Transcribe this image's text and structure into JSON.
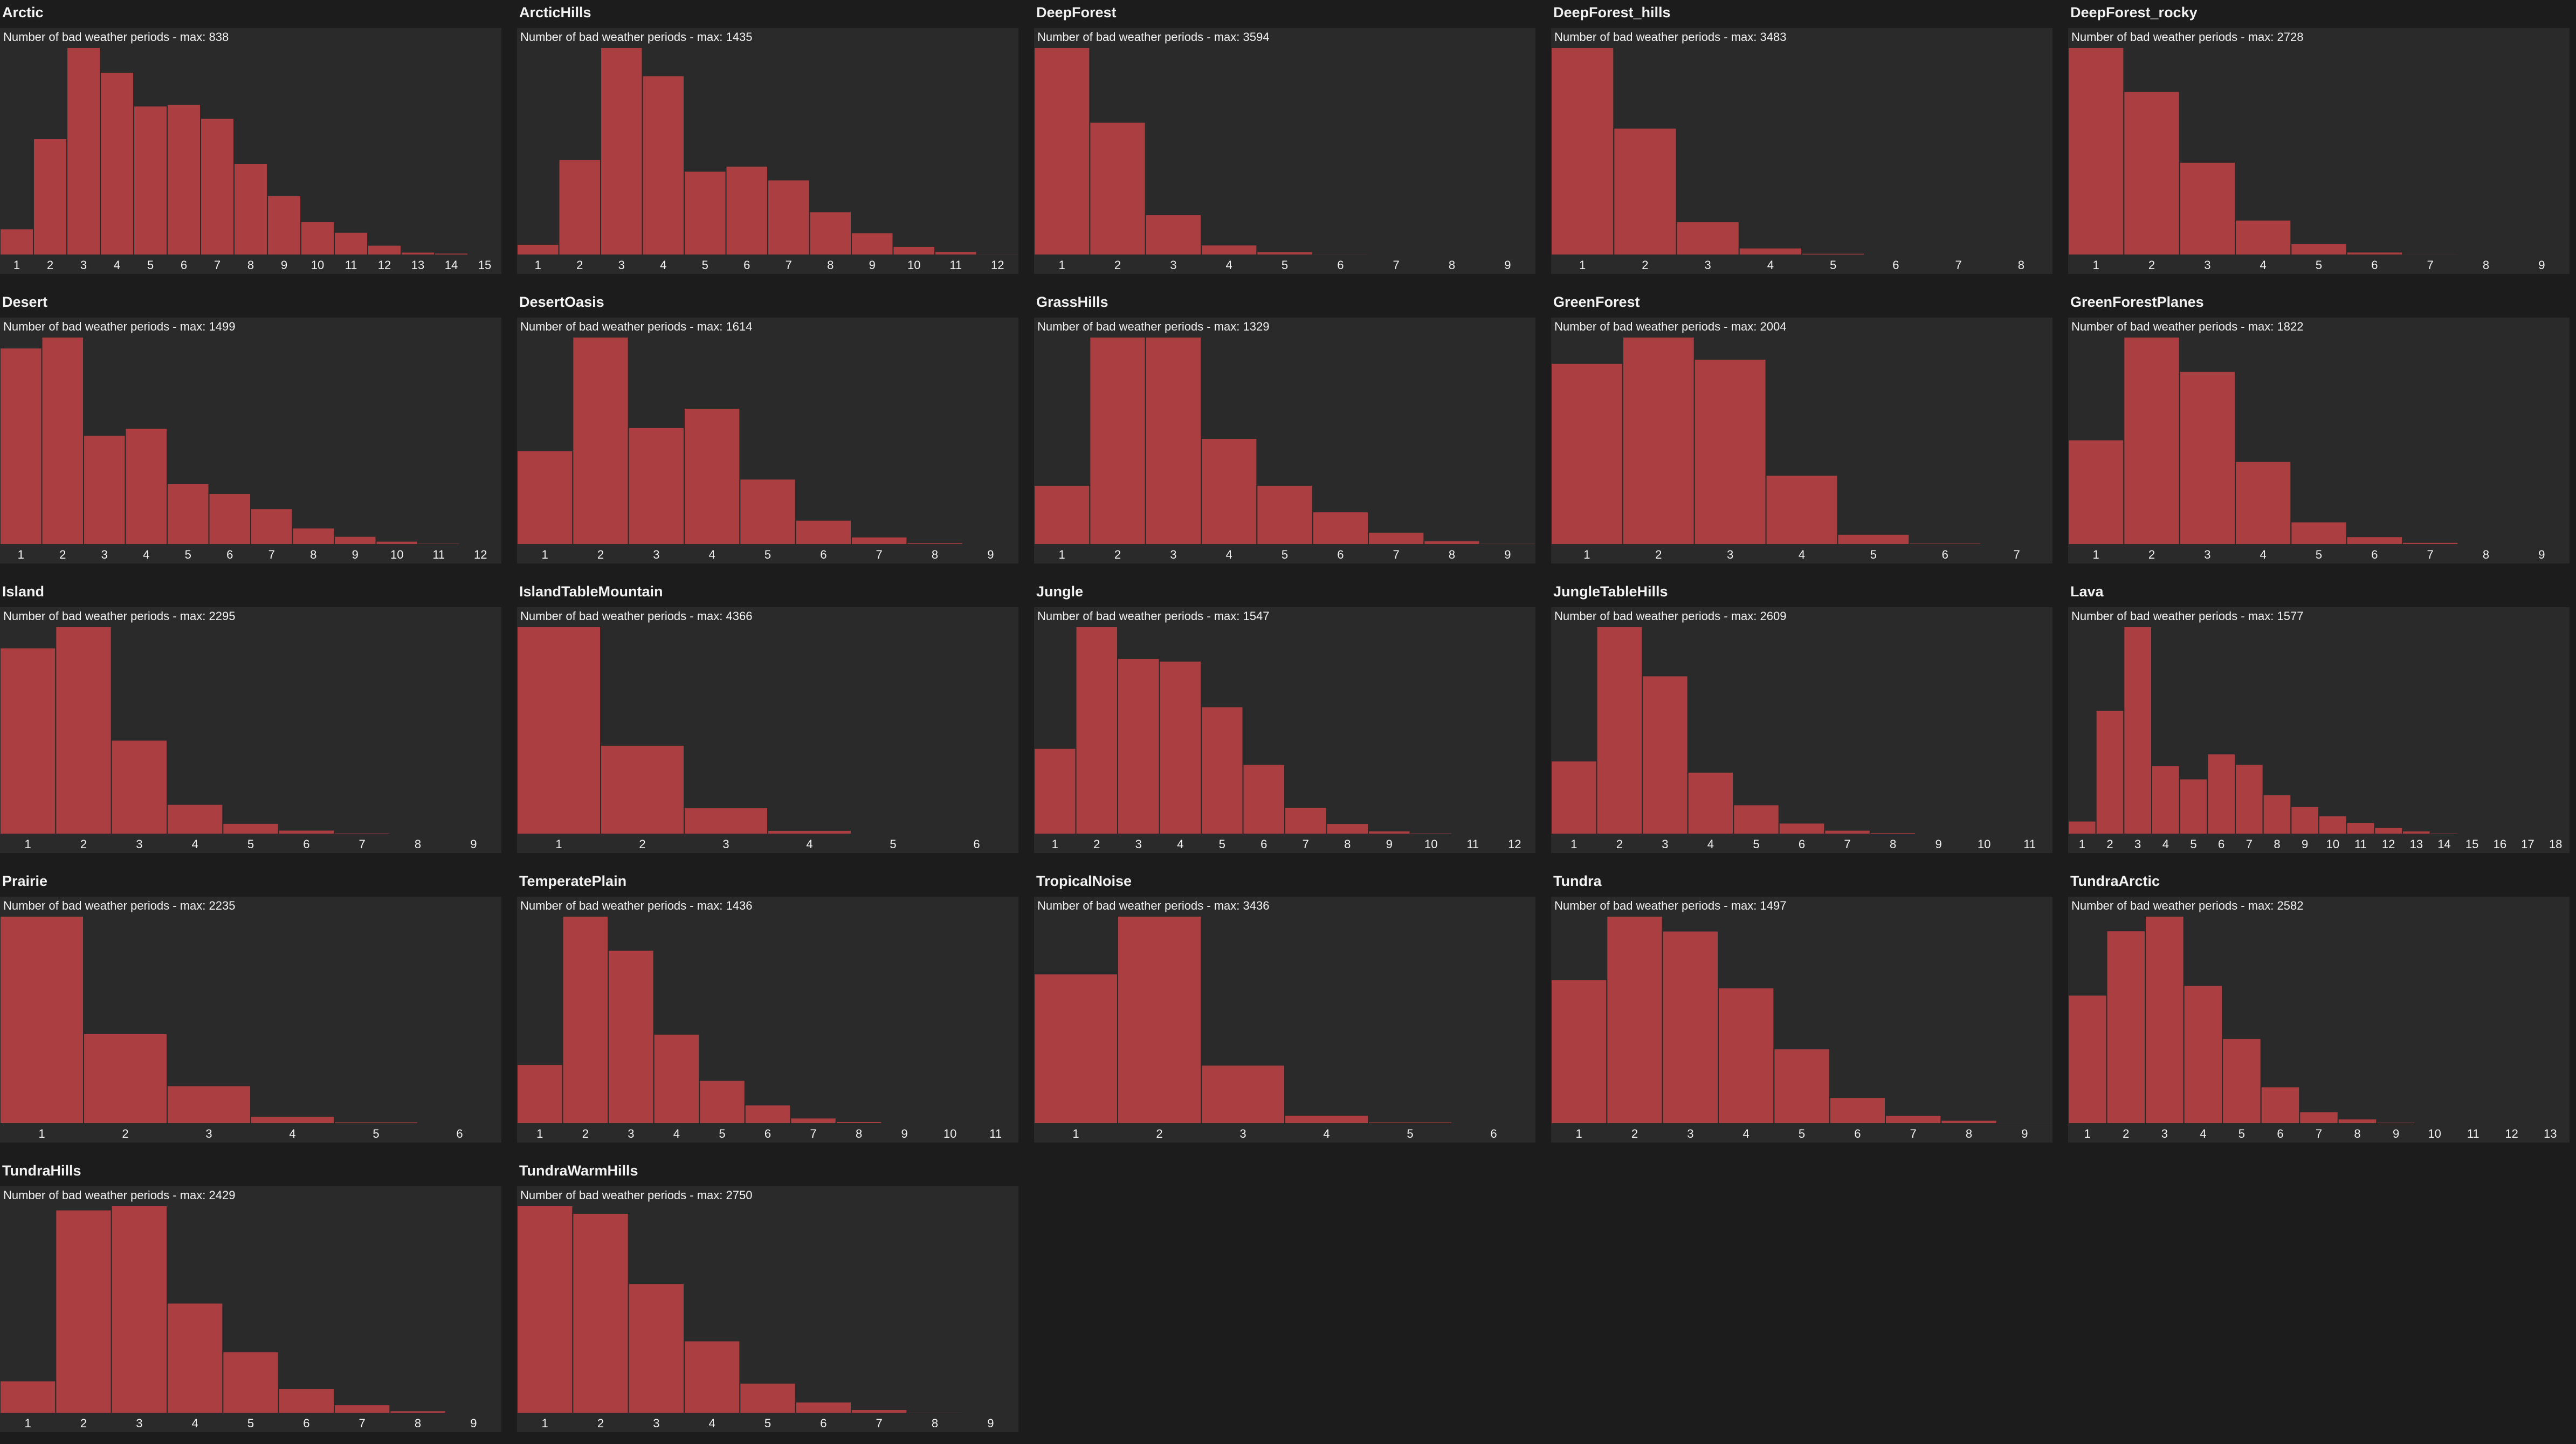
{
  "subtitle_prefix": "Number of bad weather periods - max:",
  "colors": {
    "bar": "#ab3e40",
    "plot_bg": "#2a2a2a",
    "page_bg": "#1c1c1c",
    "text": "#f2f2f2"
  },
  "chart_data": [
    {
      "type": "bar",
      "title": "Arctic",
      "subtitle": "Number of bad weather periods - max: 838",
      "ylim": [
        0,
        838
      ],
      "bin_count": 15,
      "categories": [
        "1",
        "2",
        "3",
        "4",
        "5",
        "6",
        "7",
        "8",
        "9",
        "10",
        "11",
        "12",
        "13",
        "14",
        "15"
      ],
      "values": [
        106,
        470,
        838,
        738,
        602,
        608,
        552,
        370,
        240,
        135,
        92,
        40,
        12,
        8,
        4
      ]
    },
    {
      "type": "bar",
      "title": "ArcticHills",
      "subtitle": "Number of bad weather periods - max: 1435",
      "ylim": [
        0,
        1435
      ],
      "bin_count": 12,
      "categories": [
        "1",
        "2",
        "3",
        "4",
        "5",
        "6",
        "7",
        "8",
        "9",
        "10",
        "11",
        "12"
      ],
      "values": [
        75,
        660,
        1435,
        1240,
        580,
        615,
        520,
        300,
        155,
        60,
        25,
        8
      ]
    },
    {
      "type": "bar",
      "title": "DeepForest",
      "subtitle": "Number of bad weather periods - max: 3594",
      "ylim": [
        0,
        3594
      ],
      "bin_count": 9,
      "categories": [
        "1",
        "2",
        "3",
        "4",
        "5",
        "6",
        "7",
        "8",
        "9"
      ],
      "values": [
        3594,
        2300,
        700,
        175,
        60,
        20,
        8,
        4,
        2
      ]
    },
    {
      "type": "bar",
      "title": "DeepForest_hills",
      "subtitle": "Number of bad weather periods - max: 3483",
      "ylim": [
        0,
        3483
      ],
      "bin_count": 8,
      "categories": [
        "1",
        "2",
        "3",
        "4",
        "5",
        "6",
        "7",
        "8"
      ],
      "values": [
        3483,
        2130,
        560,
        120,
        30,
        10,
        4,
        2
      ]
    },
    {
      "type": "bar",
      "title": "DeepForest_rocky",
      "subtitle": "Number of bad weather periods - max: 2728",
      "ylim": [
        0,
        2728
      ],
      "bin_count": 9,
      "categories": [
        "1",
        "2",
        "3",
        "4",
        "5",
        "6",
        "7",
        "8",
        "9"
      ],
      "values": [
        2728,
        2150,
        1220,
        460,
        150,
        40,
        15,
        5,
        2
      ]
    },
    {
      "type": "bar",
      "title": "Desert",
      "subtitle": "Number of bad weather periods - max: 1499",
      "ylim": [
        0,
        1499
      ],
      "bin_count": 12,
      "categories": [
        "1",
        "2",
        "3",
        "4",
        "5",
        "6",
        "7",
        "8",
        "9",
        "10",
        "11",
        "12"
      ],
      "values": [
        1420,
        1499,
        790,
        840,
        440,
        370,
        260,
        120,
        60,
        25,
        10,
        4
      ]
    },
    {
      "type": "bar",
      "title": "DesertOasis",
      "subtitle": "Number of bad weather periods - max: 1614",
      "ylim": [
        0,
        1614
      ],
      "bin_count": 9,
      "categories": [
        "1",
        "2",
        "3",
        "4",
        "5",
        "6",
        "7",
        "8",
        "9"
      ],
      "values": [
        730,
        1614,
        910,
        1060,
        510,
        190,
        60,
        15,
        4
      ]
    },
    {
      "type": "bar",
      "title": "GrassHills",
      "subtitle": "Number of bad weather periods - max: 1329",
      "ylim": [
        0,
        1329
      ],
      "bin_count": 9,
      "categories": [
        "1",
        "2",
        "3",
        "4",
        "5",
        "6",
        "7",
        "8",
        "9"
      ],
      "values": [
        380,
        1329,
        1329,
        680,
        380,
        210,
        80,
        25,
        8
      ]
    },
    {
      "type": "bar",
      "title": "GreenForest",
      "subtitle": "Number of bad weather periods - max: 2004",
      "ylim": [
        0,
        2004
      ],
      "bin_count": 7,
      "categories": [
        "1",
        "2",
        "3",
        "4",
        "5",
        "6",
        "7"
      ],
      "values": [
        1750,
        2004,
        1790,
        670,
        100,
        15,
        4
      ]
    },
    {
      "type": "bar",
      "title": "GreenForestPlanes",
      "subtitle": "Number of bad weather periods - max: 1822",
      "ylim": [
        0,
        1822
      ],
      "bin_count": 9,
      "categories": [
        "1",
        "2",
        "3",
        "4",
        "5",
        "6",
        "7",
        "8",
        "9"
      ],
      "values": [
        920,
        1822,
        1520,
        730,
        200,
        70,
        20,
        6,
        2
      ]
    },
    {
      "type": "bar",
      "title": "Island",
      "subtitle": "Number of bad weather periods - max: 2295",
      "ylim": [
        0,
        2295
      ],
      "bin_count": 9,
      "categories": [
        "1",
        "2",
        "3",
        "4",
        "5",
        "6",
        "7",
        "8",
        "9"
      ],
      "values": [
        2060,
        2295,
        1040,
        330,
        120,
        45,
        15,
        5,
        2
      ]
    },
    {
      "type": "bar",
      "title": "IslandTableMountain",
      "subtitle": "Number of bad weather periods - max: 4366",
      "ylim": [
        0,
        4366
      ],
      "bin_count": 6,
      "categories": [
        "1",
        "2",
        "3",
        "4",
        "5",
        "6"
      ],
      "values": [
        4366,
        1870,
        560,
        80,
        20,
        5
      ]
    },
    {
      "type": "bar",
      "title": "Jungle",
      "subtitle": "Number of bad weather periods - max: 1547",
      "ylim": [
        0,
        1547
      ],
      "bin_count": 12,
      "categories": [
        "1",
        "2",
        "3",
        "4",
        "5",
        "6",
        "7",
        "8",
        "9",
        "10",
        "11",
        "12"
      ],
      "values": [
        640,
        1547,
        1310,
        1290,
        950,
        520,
        200,
        80,
        25,
        10,
        4,
        2
      ]
    },
    {
      "type": "bar",
      "title": "JungleTableHills",
      "subtitle": "Number of bad weather periods - max: 2609",
      "ylim": [
        0,
        2609
      ],
      "bin_count": 11,
      "categories": [
        "1",
        "2",
        "3",
        "4",
        "5",
        "6",
        "7",
        "8",
        "9",
        "10",
        "11"
      ],
      "values": [
        920,
        2609,
        1990,
        780,
        370,
        140,
        50,
        20,
        8,
        3,
        1
      ]
    },
    {
      "type": "bar",
      "title": "Lava",
      "subtitle": "Number of bad weather periods - max: 1577",
      "ylim": [
        0,
        1577
      ],
      "bin_count": 18,
      "categories": [
        "1",
        "2",
        "3",
        "4",
        "5",
        "6",
        "7",
        "8",
        "9",
        "10",
        "11",
        "12",
        "13",
        "14",
        "15",
        "16",
        "17",
        "18"
      ],
      "values": [
        100,
        940,
        1577,
        520,
        420,
        610,
        530,
        300,
        210,
        140,
        90,
        50,
        25,
        10,
        5,
        2,
        1,
        1
      ]
    },
    {
      "type": "bar",
      "title": "Prairie",
      "subtitle": "Number of bad weather periods - max: 2235",
      "ylim": [
        0,
        2235
      ],
      "bin_count": 6,
      "categories": [
        "1",
        "2",
        "3",
        "4",
        "5",
        "6"
      ],
      "values": [
        2235,
        970,
        410,
        80,
        20,
        5
      ]
    },
    {
      "type": "bar",
      "title": "TemperatePlain",
      "subtitle": "Number of bad weather periods - max: 1436",
      "ylim": [
        0,
        1436
      ],
      "bin_count": 11,
      "categories": [
        "1",
        "2",
        "3",
        "4",
        "5",
        "6",
        "7",
        "8",
        "9",
        "10",
        "11"
      ],
      "values": [
        410,
        1436,
        1200,
        620,
        300,
        130,
        40,
        15,
        6,
        2,
        1
      ]
    },
    {
      "type": "bar",
      "title": "TropicalNoise",
      "subtitle": "Number of bad weather periods - max: 3436",
      "ylim": [
        0,
        3436
      ],
      "bin_count": 6,
      "categories": [
        "1",
        "2",
        "3",
        "4",
        "5",
        "6"
      ],
      "values": [
        2480,
        3436,
        970,
        140,
        30,
        8
      ]
    },
    {
      "type": "bar",
      "title": "Tundra",
      "subtitle": "Number of bad weather periods - max: 1497",
      "ylim": [
        0,
        1497
      ],
      "bin_count": 9,
      "categories": [
        "1",
        "2",
        "3",
        "4",
        "5",
        "6",
        "7",
        "8",
        "9"
      ],
      "values": [
        1040,
        1497,
        1390,
        980,
        540,
        190,
        60,
        25,
        8
      ]
    },
    {
      "type": "bar",
      "title": "TundraArctic",
      "subtitle": "Number of bad weather periods - max: 2582",
      "ylim": [
        0,
        2582
      ],
      "bin_count": 13,
      "categories": [
        "1",
        "2",
        "3",
        "4",
        "5",
        "6",
        "7",
        "8",
        "9",
        "10",
        "11",
        "12",
        "13"
      ],
      "values": [
        1600,
        2400,
        2582,
        1720,
        1060,
        460,
        150,
        60,
        20,
        8,
        3,
        1,
        1
      ]
    },
    {
      "type": "bar",
      "title": "TundraHills",
      "subtitle": "Number of bad weather periods - max: 2429",
      "ylim": [
        0,
        2429
      ],
      "bin_count": 9,
      "categories": [
        "1",
        "2",
        "3",
        "4",
        "5",
        "6",
        "7",
        "8",
        "9"
      ],
      "values": [
        380,
        2380,
        2429,
        1290,
        720,
        290,
        100,
        30,
        10
      ]
    },
    {
      "type": "bar",
      "title": "TundraWarmHills",
      "subtitle": "Number of bad weather periods - max: 2750",
      "ylim": [
        0,
        2750
      ],
      "bin_count": 9,
      "categories": [
        "1",
        "2",
        "3",
        "4",
        "5",
        "6",
        "7",
        "8",
        "9"
      ],
      "values": [
        2750,
        2650,
        1720,
        960,
        400,
        150,
        50,
        15,
        5
      ]
    }
  ]
}
